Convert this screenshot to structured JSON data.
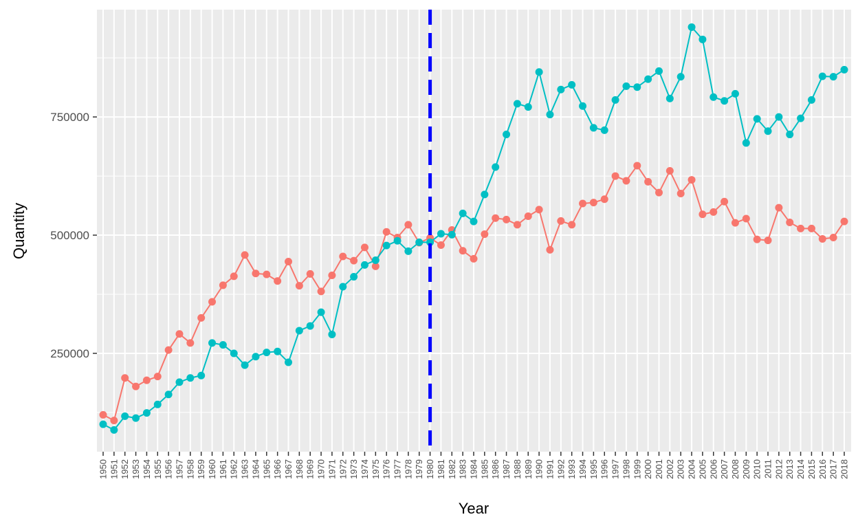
{
  "chart_data": {
    "type": "line",
    "xlabel": "Year",
    "ylabel": "Quantity",
    "x": [
      1950,
      1951,
      1952,
      1953,
      1954,
      1955,
      1956,
      1957,
      1958,
      1959,
      1960,
      1961,
      1962,
      1963,
      1964,
      1965,
      1966,
      1967,
      1968,
      1969,
      1970,
      1971,
      1972,
      1973,
      1974,
      1975,
      1976,
      1977,
      1978,
      1979,
      1980,
      1981,
      1982,
      1983,
      1984,
      1985,
      1986,
      1987,
      1988,
      1989,
      1990,
      1991,
      1992,
      1993,
      1994,
      1995,
      1996,
      1997,
      1998,
      1999,
      2000,
      2001,
      2002,
      2003,
      2004,
      2005,
      2006,
      2007,
      2008,
      2009,
      2010,
      2011,
      2012,
      2013,
      2014,
      2015,
      2016,
      2017,
      2018
    ],
    "xlim": [
      1950,
      2018
    ],
    "ylim": [
      42000,
      977000
    ],
    "yticks": [
      250000,
      500000,
      750000
    ],
    "ytick_labels": [
      "250000",
      "500000",
      "750000"
    ],
    "grid": true,
    "legend": "none",
    "series": [
      {
        "color": "#F8766D",
        "values": [
          120000,
          108000,
          198000,
          180000,
          193000,
          201000,
          257000,
          291000,
          272000,
          325000,
          359000,
          394000,
          413000,
          458000,
          419000,
          417000,
          403000,
          444000,
          393000,
          418000,
          381000,
          415000,
          455000,
          446000,
          474000,
          434000,
          507000,
          495000,
          522000,
          484000,
          494000,
          479000,
          511000,
          467000,
          450000,
          502000,
          536000,
          533000,
          522000,
          540000,
          554000,
          469000,
          530000,
          522000,
          567000,
          569000,
          576000,
          625000,
          615000,
          647000,
          613000,
          590000,
          636000,
          588000,
          617000,
          544000,
          549000,
          571000,
          526000,
          535000,
          491000,
          489000,
          558000,
          527000,
          514000,
          514000,
          492000,
          495000,
          529000
        ]
      },
      {
        "color": "#00BFC4",
        "values": [
          100000,
          88000,
          117000,
          113000,
          124000,
          142000,
          163000,
          189000,
          198000,
          203000,
          272000,
          268000,
          250000,
          225000,
          243000,
          252000,
          254000,
          231000,
          298000,
          308000,
          337000,
          290000,
          391000,
          412000,
          437000,
          447000,
          478000,
          488000,
          466000,
          485000,
          485000,
          503000,
          501000,
          546000,
          529000,
          586000,
          644000,
          713000,
          778000,
          771000,
          845000,
          755000,
          808000,
          818000,
          773000,
          727000,
          722000,
          786000,
          815000,
          813000,
          830000,
          847000,
          789000,
          835000,
          940000,
          914000,
          792000,
          784000,
          799000,
          695000,
          746000,
          720000,
          750000,
          713000,
          747000,
          786000,
          836000,
          835000,
          850000
        ]
      }
    ],
    "annotations": [
      {
        "type": "vline",
        "x": 1980,
        "color": "#0000FF",
        "style": "dashed"
      }
    ]
  }
}
